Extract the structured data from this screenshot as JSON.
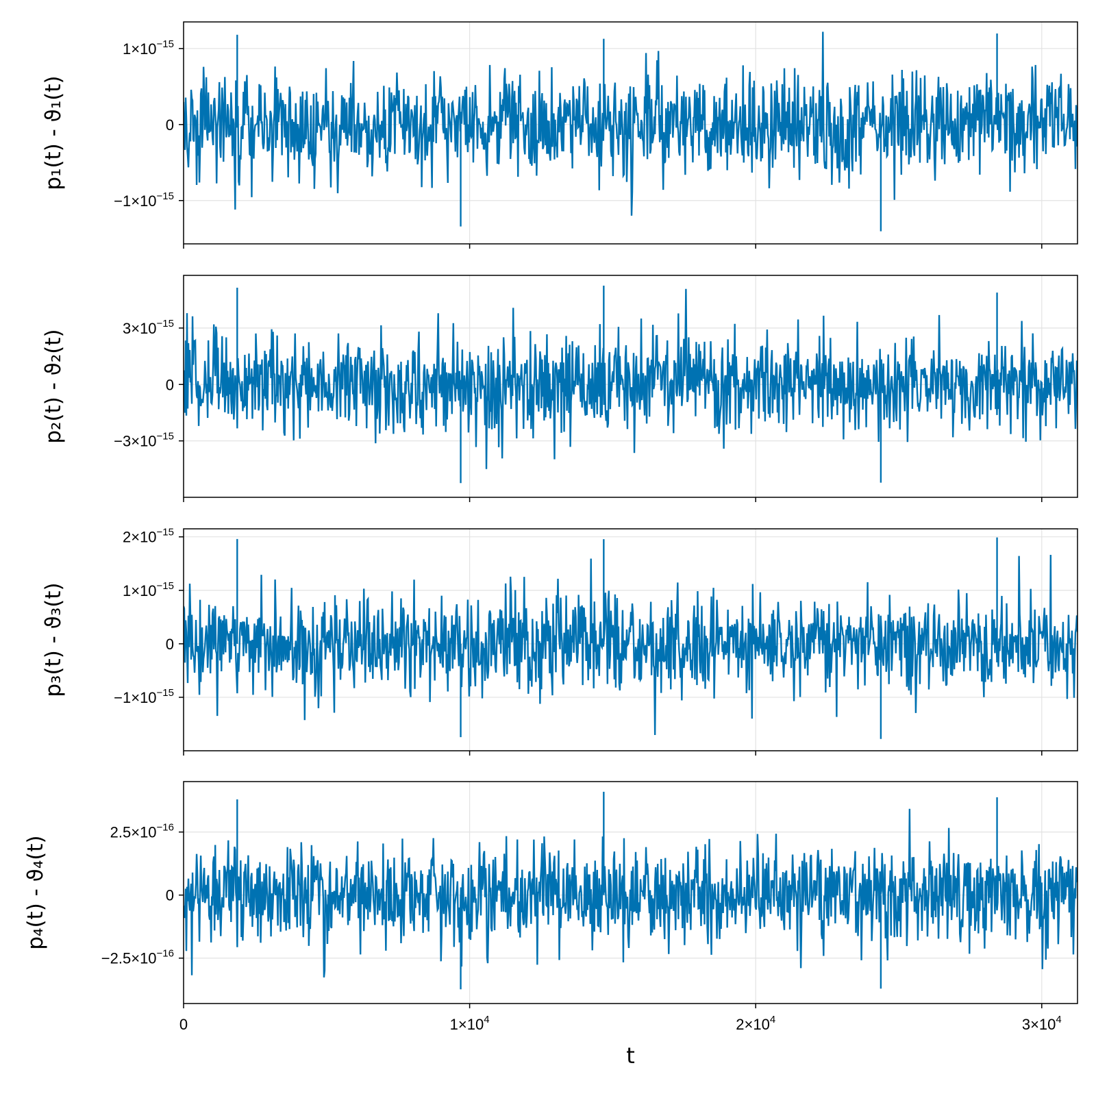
{
  "chart_data": [
    {
      "type": "line",
      "ylabel": "p₁(t) - ϑ₁(t)",
      "x_range": [
        0,
        31250
      ],
      "ylim": [
        -1.57e-15,
        1.35e-15
      ],
      "yticks": [
        {
          "value": 1e-15,
          "mantissa": "1",
          "exponent": "−15"
        },
        {
          "value": 0,
          "mantissa": "0",
          "exponent": ""
        },
        {
          "value": -1e-15,
          "mantissa": "−1",
          "exponent": "−15"
        }
      ],
      "noise_sigma": 3.2e-16,
      "peak_max": 1.22e-15,
      "peak_min": -1.43e-15,
      "series": [
        {
          "values_note_x": [
            0,
            31250
          ]
        }
      ],
      "color": "#0072b2"
    },
    {
      "type": "line",
      "ylabel": "p₂(t) - ϑ₂(t)",
      "x_range": [
        0,
        31250
      ],
      "ylim": [
        -6e-15,
        5.8e-15
      ],
      "yticks": [
        {
          "value": 3e-15,
          "mantissa": "3",
          "exponent": "−15"
        },
        {
          "value": 0,
          "mantissa": "0",
          "exponent": ""
        },
        {
          "value": -3e-15,
          "mantissa": "−3",
          "exponent": "−15"
        }
      ],
      "noise_sigma": 1.3e-15,
      "peak_max": 5.3e-15,
      "peak_min": -5.3e-15,
      "color": "#0072b2"
    },
    {
      "type": "line",
      "ylabel": "p₃(t) - ϑ₃(t)",
      "x_range": [
        0,
        31250
      ],
      "ylim": [
        -2e-15,
        2.15e-15
      ],
      "yticks": [
        {
          "value": 2e-15,
          "mantissa": "2",
          "exponent": "−15"
        },
        {
          "value": 1e-15,
          "mantissa": "1",
          "exponent": "−15"
        },
        {
          "value": 0,
          "mantissa": "0",
          "exponent": ""
        },
        {
          "value": -1e-15,
          "mantissa": "−1",
          "exponent": "−15"
        }
      ],
      "noise_sigma": 4.4e-16,
      "peak_max": 2e-15,
      "peak_min": -1.78e-15,
      "color": "#0072b2"
    },
    {
      "type": "line",
      "ylabel": "p₄(t) - ϑ₄(t)",
      "x_range": [
        0,
        31250
      ],
      "ylim": [
        -4.3e-16,
        4.5e-16
      ],
      "yticks": [
        {
          "value": 2.5e-16,
          "mantissa": "2.5",
          "exponent": "−16"
        },
        {
          "value": 0,
          "mantissa": "0",
          "exponent": ""
        },
        {
          "value": -2.5e-16,
          "mantissa": "−2.5",
          "exponent": "−16"
        }
      ],
      "noise_sigma": 9.5e-17,
      "peak_max": 4.1e-16,
      "peak_min": -3.8e-16,
      "color": "#0072b2"
    }
  ],
  "x_axis": {
    "title": "t",
    "ticks": [
      {
        "value": 0,
        "mantissa": "0",
        "exponent": ""
      },
      {
        "value": 10000,
        "mantissa": "1",
        "exponent": "4"
      },
      {
        "value": 20000,
        "mantissa": "2",
        "exponent": "4"
      },
      {
        "value": 30000,
        "mantissa": "3",
        "exponent": "4"
      }
    ]
  },
  "grid": true
}
